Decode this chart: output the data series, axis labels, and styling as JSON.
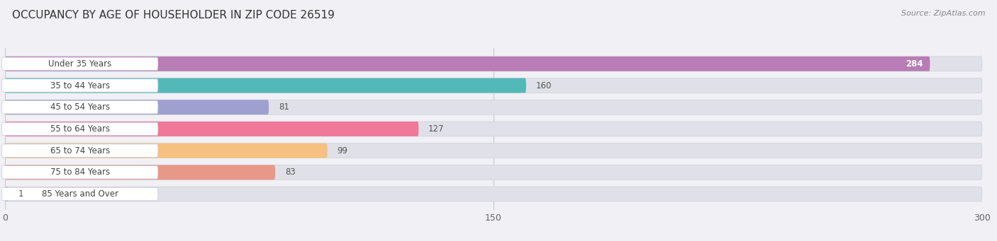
{
  "title": "OCCUPANCY BY AGE OF HOUSEHOLDER IN ZIP CODE 26519",
  "source": "Source: ZipAtlas.com",
  "categories": [
    "Under 35 Years",
    "35 to 44 Years",
    "45 to 54 Years",
    "55 to 64 Years",
    "65 to 74 Years",
    "75 to 84 Years",
    "85 Years and Over"
  ],
  "values": [
    284,
    160,
    81,
    127,
    99,
    83,
    1
  ],
  "bar_colors": [
    "#b87db5",
    "#52b8b8",
    "#a0a0d0",
    "#f07898",
    "#f5c080",
    "#e89888",
    "#90b8e0"
  ],
  "xlim_data": 300,
  "xticks": [
    0,
    150,
    300
  ],
  "background_color": "#f0f0f5",
  "bar_bg_color": "#e0e0e8",
  "label_bg_color": "#ffffff",
  "title_fontsize": 11,
  "label_fontsize": 8.5,
  "value_fontsize": 8.5,
  "value_inside_color": "#ffffff",
  "value_outside_color": "#555555"
}
